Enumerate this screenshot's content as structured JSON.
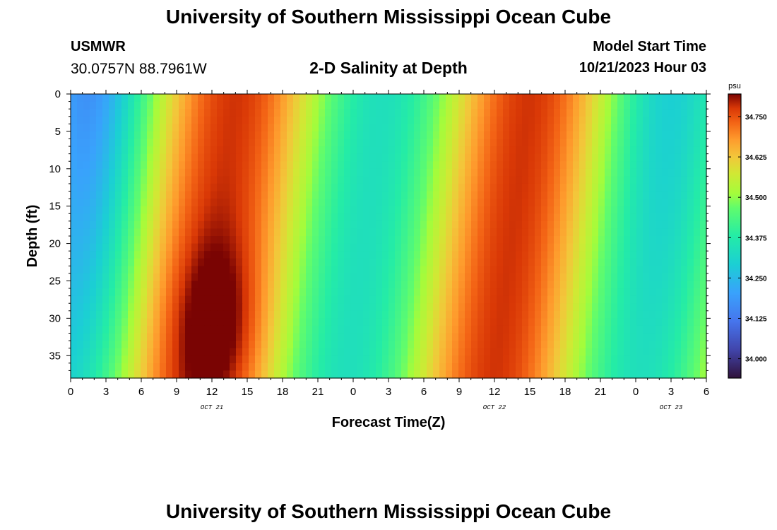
{
  "header": {
    "title": "University of Southern Mississippi Ocean Cube",
    "station": "USMWR",
    "coords": "30.0757N  88.7961W",
    "subtitle": "2-D Salinity at Depth",
    "model_start_label": "Model Start Time",
    "model_start_value": "10/21/2023 Hour 03"
  },
  "footer": {
    "title": "University of Southern Mississippi Ocean Cube"
  },
  "chart_data": {
    "type": "heatmap",
    "title": "2-D Salinity at Depth",
    "xlabel": "Forecast Time(Z)",
    "ylabel": "Depth (ft)",
    "x_tick_labels": [
      "0",
      "3",
      "6",
      "9",
      "12",
      "15",
      "18",
      "21",
      "0",
      "3",
      "6",
      "9",
      "12",
      "15",
      "18",
      "21",
      "0",
      "3",
      "6"
    ],
    "x_date_labels": [
      {
        "label": "OCT 21",
        "at_tick": 12
      },
      {
        "label": "OCT 22",
        "at_tick": 12
      },
      {
        "label": "OCT 23",
        "at_tick": 3
      }
    ],
    "x_range_hours": [
      0,
      54
    ],
    "y_tick_labels": [
      "0",
      "5",
      "10",
      "15",
      "20",
      "25",
      "30",
      "35"
    ],
    "y_range": [
      0,
      38
    ],
    "y_inverted": true,
    "colorbar": {
      "unit": "psu",
      "ticks": [
        "34.000",
        "34.125",
        "34.250",
        "34.375",
        "34.500",
        "34.625",
        "34.750"
      ],
      "range": [
        33.94,
        34.82
      ]
    },
    "colors": {
      "low": "#30123b",
      "mid": "#a2fc3c",
      "high": "#7a0403"
    }
  }
}
